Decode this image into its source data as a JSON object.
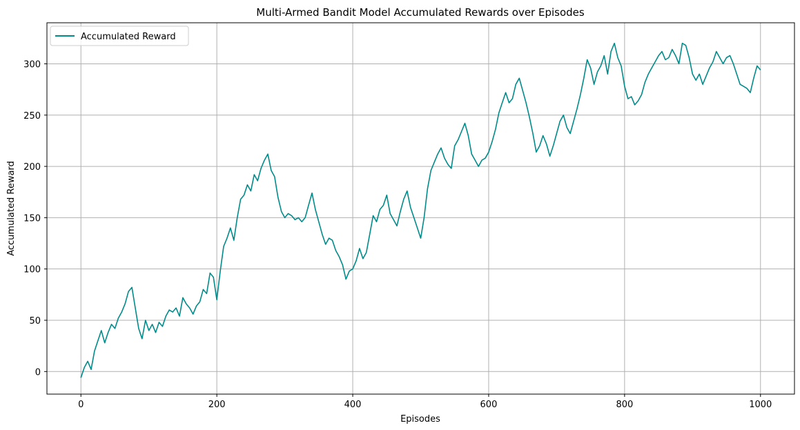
{
  "chart_data": {
    "type": "line",
    "title": "Multi-Armed Bandit Model Accumulated Rewards over Episodes",
    "xlabel": "Episodes",
    "ylabel": "Accumulated Reward",
    "xlim": [
      -50,
      1050
    ],
    "ylim": [
      -22,
      340
    ],
    "xticks": [
      0,
      200,
      400,
      600,
      800,
      1000
    ],
    "yticks": [
      0,
      50,
      100,
      150,
      200,
      250,
      300
    ],
    "grid": true,
    "legend": "upper-left",
    "series": [
      {
        "name": "Accumulated Reward",
        "color": "#008b8b",
        "x": [
          0,
          5,
          10,
          15,
          20,
          25,
          30,
          35,
          40,
          45,
          50,
          55,
          60,
          65,
          70,
          75,
          80,
          85,
          90,
          95,
          100,
          105,
          110,
          115,
          120,
          125,
          130,
          135,
          140,
          145,
          150,
          155,
          160,
          165,
          170,
          175,
          180,
          185,
          190,
          195,
          200,
          205,
          210,
          215,
          220,
          225,
          230,
          235,
          240,
          245,
          250,
          255,
          260,
          265,
          270,
          275,
          280,
          285,
          290,
          295,
          300,
          305,
          310,
          315,
          320,
          325,
          330,
          335,
          340,
          345,
          350,
          355,
          360,
          365,
          370,
          375,
          380,
          385,
          390,
          395,
          400,
          405,
          410,
          415,
          420,
          425,
          430,
          435,
          440,
          445,
          450,
          455,
          460,
          465,
          470,
          475,
          480,
          485,
          490,
          495,
          500,
          505,
          510,
          515,
          520,
          525,
          530,
          535,
          540,
          545,
          550,
          555,
          560,
          565,
          570,
          575,
          580,
          585,
          590,
          595,
          600,
          605,
          610,
          615,
          620,
          625,
          630,
          635,
          640,
          645,
          650,
          655,
          660,
          665,
          670,
          675,
          680,
          685,
          690,
          695,
          700,
          705,
          710,
          715,
          720,
          725,
          730,
          735,
          740,
          745,
          750,
          755,
          760,
          765,
          770,
          775,
          780,
          785,
          790,
          795,
          800,
          805,
          810,
          815,
          820,
          825,
          830,
          835,
          840,
          845,
          850,
          855,
          860,
          865,
          870,
          875,
          880,
          885,
          890,
          895,
          900,
          905,
          910,
          915,
          920,
          925,
          930,
          935,
          940,
          945,
          950,
          955,
          960,
          965,
          970,
          975,
          980,
          985,
          990,
          995,
          1000
        ],
        "y": [
          -6,
          4,
          10,
          2,
          20,
          30,
          40,
          28,
          38,
          46,
          42,
          52,
          58,
          66,
          78,
          82,
          62,
          42,
          32,
          50,
          40,
          46,
          38,
          48,
          44,
          54,
          60,
          58,
          62,
          54,
          72,
          66,
          62,
          56,
          64,
          68,
          80,
          76,
          96,
          92,
          70,
          98,
          122,
          130,
          140,
          128,
          150,
          168,
          172,
          182,
          176,
          192,
          186,
          198,
          206,
          212,
          196,
          190,
          170,
          156,
          150,
          154,
          152,
          148,
          150,
          146,
          150,
          162,
          174,
          158,
          146,
          134,
          124,
          130,
          128,
          118,
          112,
          104,
          90,
          98,
          100,
          108,
          120,
          110,
          116,
          134,
          152,
          146,
          158,
          162,
          172,
          154,
          148,
          142,
          156,
          168,
          176,
          160,
          150,
          140,
          130,
          150,
          178,
          196,
          204,
          212,
          218,
          208,
          202,
          198,
          220,
          226,
          234,
          242,
          230,
          212,
          206,
          200,
          206,
          208,
          214,
          224,
          236,
          252,
          262,
          272,
          262,
          266,
          280,
          286,
          274,
          262,
          248,
          232,
          214,
          220,
          230,
          222,
          210,
          220,
          232,
          244,
          250,
          238,
          232,
          244,
          256,
          270,
          286,
          304,
          296,
          280,
          292,
          298,
          308,
          290,
          312,
          320,
          306,
          298,
          278,
          266,
          268,
          260,
          264,
          270,
          282,
          290,
          296,
          302,
          308,
          312,
          304,
          306,
          314,
          308,
          300,
          320,
          318,
          306,
          290,
          284,
          290,
          280,
          288,
          296,
          302,
          312,
          306,
          300,
          306,
          308,
          300,
          290,
          280,
          278,
          276,
          272,
          286,
          298,
          294
        ]
      }
    ]
  }
}
